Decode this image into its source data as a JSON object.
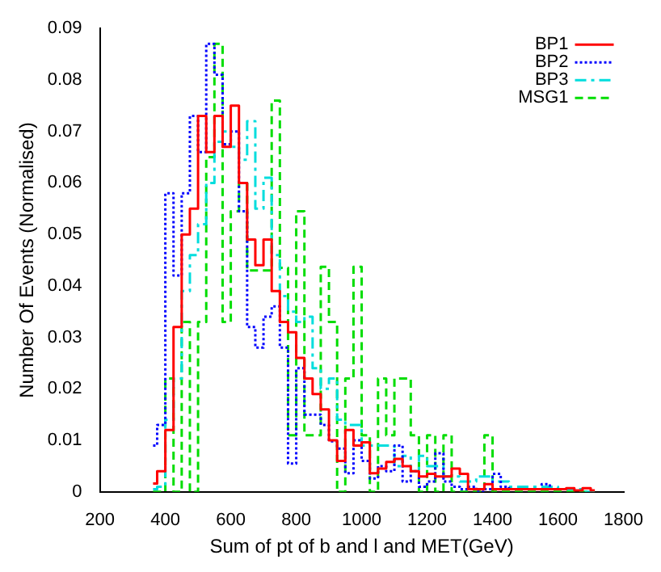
{
  "chart_data": {
    "type": "step",
    "xlabel": "Sum of pt of b and l and MET(GeV)",
    "ylabel": "Number Of Events (Normalised)",
    "x": [
      362.5,
      387.5,
      412.5,
      437.5,
      462.5,
      487.5,
      512.5,
      537.5,
      562.5,
      587.5,
      612.5,
      637.5,
      662.5,
      687.5,
      712.5,
      737.5,
      762.5,
      787.5,
      812.5,
      837.5,
      862.5,
      887.5,
      912.5,
      937.5,
      962.5,
      987.5,
      1012.5,
      1037.5,
      1062.5,
      1087.5,
      1112.5,
      1137.5,
      1162.5,
      1187.5,
      1212.5,
      1237.5,
      1262.5,
      1287.5,
      1312.5,
      1337.5,
      1362.5,
      1387.5,
      1412.5,
      1437.5,
      1462.5,
      1487.5,
      1512.5,
      1537.5,
      1562.5,
      1587.5,
      1612.5,
      1637.5,
      1662.5,
      1687.5,
      1712.5
    ],
    "series": [
      {
        "name": "BP1",
        "color": "#ff0000",
        "line_style": "solid",
        "values": [
          0.0016,
          0.004,
          0.012,
          0.032,
          0.05,
          0.055,
          0.073,
          0.066,
          0.073,
          0.067,
          0.075,
          0.06,
          0.049,
          0.044,
          0.049,
          0.039,
          0.033,
          0.031,
          0.026,
          0.022,
          0.019,
          0.016,
          0.01,
          0.006,
          0.012,
          0.009,
          0.0096,
          0.0036,
          0.0045,
          0.0058,
          0.0064,
          0.005,
          0.004,
          0.003,
          0.0035,
          0.003,
          0.003,
          0.0045,
          0.0035,
          0.0005,
          0.0005,
          0.0015,
          0.0005,
          0.0005,
          0.0005,
          0.0005,
          0.0005,
          0.0005,
          0.0005,
          0.0005,
          0.0005,
          0.0007,
          0.0003,
          0.0007,
          0.0003
        ]
      },
      {
        "name": "BP2",
        "color": "#0000ff",
        "line_style": "dotted",
        "values": [
          0.009,
          0.013,
          0.058,
          0.042,
          0.058,
          0.073,
          0.066,
          0.087,
          0.081,
          0.0675,
          0.07,
          0.0545,
          0.032,
          0.028,
          0.034,
          0.036,
          0.028,
          0.0055,
          0.024,
          0.015,
          0.015,
          0.013,
          0.0098,
          0.0084,
          0.0036,
          0.01,
          0.006,
          0.0026,
          0.005,
          0.004,
          0.009,
          0.002,
          0.004,
          0.001,
          0.002,
          0.0075,
          0.002,
          0.001,
          0.0005,
          0.001,
          0,
          0.0005,
          0.0035,
          0.001,
          0.0005,
          0.0005,
          0.0005,
          0.0005,
          0.0015,
          0.0005,
          null,
          null,
          null,
          null,
          null
        ]
      },
      {
        "name": "BP3",
        "color": "#00dddd",
        "line_style": "dashdot",
        "values": [
          0.0005,
          0.001,
          0.014,
          0.022,
          0.039,
          0.046,
          0.052,
          0.06,
          0.068,
          0.07,
          0.067,
          0.0645,
          0.072,
          0.055,
          0.061,
          0.046,
          0.038,
          0.035,
          0.033,
          0.034,
          0.024,
          0.02,
          0.022,
          0.014,
          0.013,
          0.013,
          0.009,
          0.009,
          0.009,
          0.009,
          0.005,
          0.007,
          0.004,
          0.007,
          0.005,
          0.005,
          0.003,
          0.003,
          0.002,
          0.002,
          0.003,
          0.003,
          0.002,
          0.002,
          0.001,
          0.001,
          0.001,
          0.001,
          0.001,
          0.001,
          0.0005,
          0.0005,
          0.0005,
          0,
          0
        ]
      },
      {
        "name": "MSG1",
        "color": "#00dd00",
        "line_style": "dashed",
        "values": [
          0,
          0,
          0.022,
          0,
          0.033,
          0,
          0.033,
          0.065,
          0.087,
          0.033,
          0.0545,
          0.06,
          0.043,
          0.043,
          0.043,
          0.076,
          0.0435,
          0.011,
          0.0545,
          0.011,
          0.011,
          0.0437,
          0.033,
          0,
          0.022,
          0.0437,
          0.011,
          0,
          0.022,
          0.011,
          0.022,
          0.022,
          0.011,
          0,
          0.011,
          0,
          0.011,
          0,
          0,
          0,
          0,
          0.011,
          0,
          0,
          0,
          0,
          0,
          0,
          0,
          0,
          0,
          0,
          0,
          0,
          0
        ]
      }
    ],
    "xlim": [
      200,
      1800
    ],
    "xticks": [
      200,
      400,
      600,
      800,
      1000,
      1200,
      1400,
      1600,
      1800
    ],
    "ylim": [
      0,
      0.09
    ],
    "yticks": [
      0,
      0.01,
      0.02,
      0.03,
      0.04,
      0.05,
      0.06,
      0.07,
      0.08,
      0.09
    ],
    "grid": false,
    "legend": "top right"
  }
}
